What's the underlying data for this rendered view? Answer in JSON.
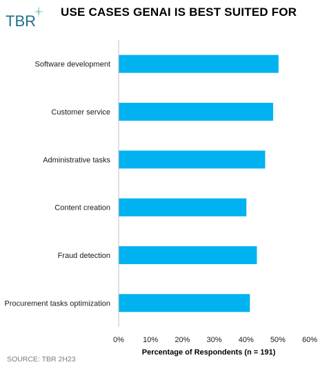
{
  "logo_text": "TBR",
  "title": "USE CASES GENAI IS BEST SUITED FOR",
  "source": "SOURCE: TBR 2H23",
  "colors": {
    "bar": "#00b2f0",
    "logo": "#1d6f8a",
    "axis": "#bfbfbf"
  },
  "chart_data": {
    "type": "bar",
    "orientation": "horizontal",
    "title": "USE CASES GENAI IS BEST SUITED FOR",
    "categories": [
      "Software development",
      "Customer service",
      "Administrative tasks",
      "Content creation",
      "Fraud detection",
      "Procurement tasks optimization"
    ],
    "values": [
      50.2,
      48.5,
      46.0,
      40.1,
      43.4,
      41.2
    ],
    "xlabel": "Percentage of Respondents (n = 191)",
    "ylabel": "",
    "xlim": [
      0,
      60
    ],
    "x_ticks": [
      "0%",
      "10%",
      "20%",
      "30%",
      "40%",
      "50%",
      "60%"
    ],
    "grid": false,
    "legend": "none"
  }
}
